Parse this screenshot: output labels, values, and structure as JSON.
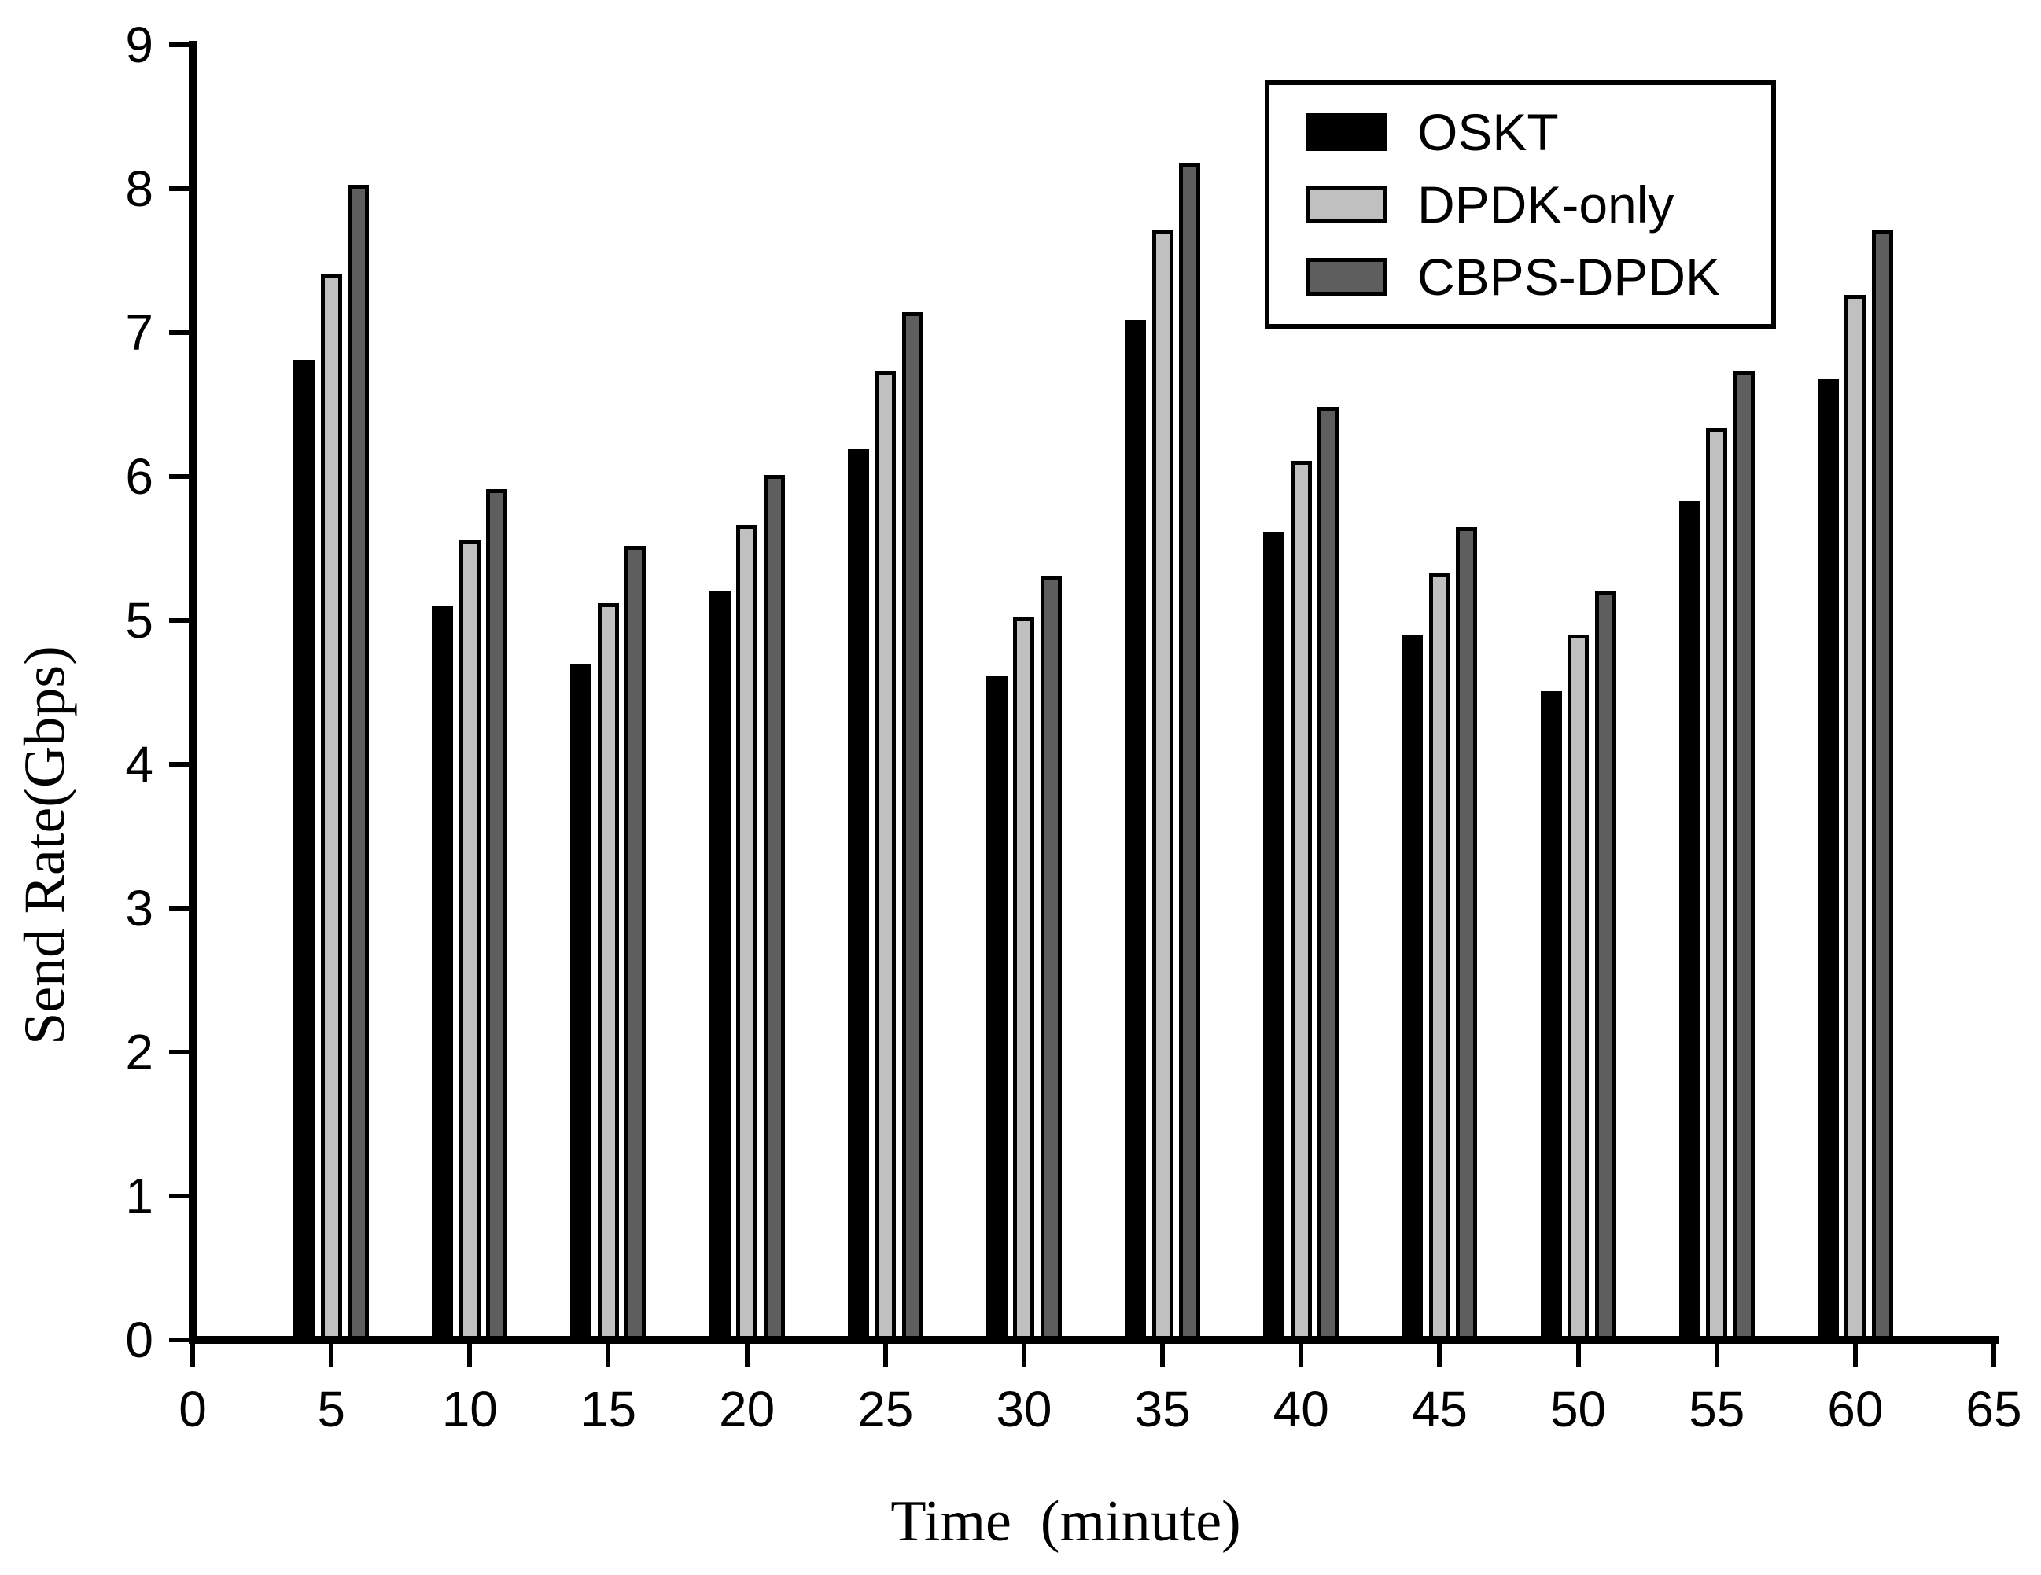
{
  "chart_data": {
    "type": "bar",
    "title": "",
    "xlabel": "Time  (minute)",
    "ylabel": "Send Rate(Gbps)",
    "categories": [
      5,
      10,
      15,
      20,
      25,
      30,
      35,
      40,
      45,
      50,
      55,
      60
    ],
    "series": [
      {
        "name": "OSKT",
        "color": "#000000",
        "values": [
          6.81,
          5.1,
          4.7,
          5.21,
          6.19,
          4.61,
          7.09,
          5.62,
          4.9,
          4.51,
          5.83,
          6.68
        ]
      },
      {
        "name": "DPDK-only",
        "color": "#c0c0c0",
        "values": [
          7.41,
          5.56,
          5.12,
          5.66,
          6.73,
          5.02,
          7.71,
          6.11,
          5.33,
          4.9,
          6.34,
          7.26
        ]
      },
      {
        "name": "CBPS-DPDK",
        "color": "#5e5e5e",
        "values": [
          8.03,
          5.91,
          5.52,
          6.01,
          7.14,
          5.31,
          8.18,
          6.48,
          5.65,
          5.2,
          6.73,
          7.71
        ]
      }
    ],
    "xlim": [
      0,
      65
    ],
    "ylim": [
      0,
      9
    ],
    "xticks": [
      0,
      5,
      10,
      15,
      20,
      25,
      30,
      35,
      40,
      45,
      50,
      55,
      60,
      65
    ],
    "yticks": [
      0,
      1,
      2,
      3,
      4,
      5,
      6,
      7,
      8,
      9
    ],
    "bar_outline_color": "#000000",
    "grid": false,
    "legend_position": "top-right"
  }
}
